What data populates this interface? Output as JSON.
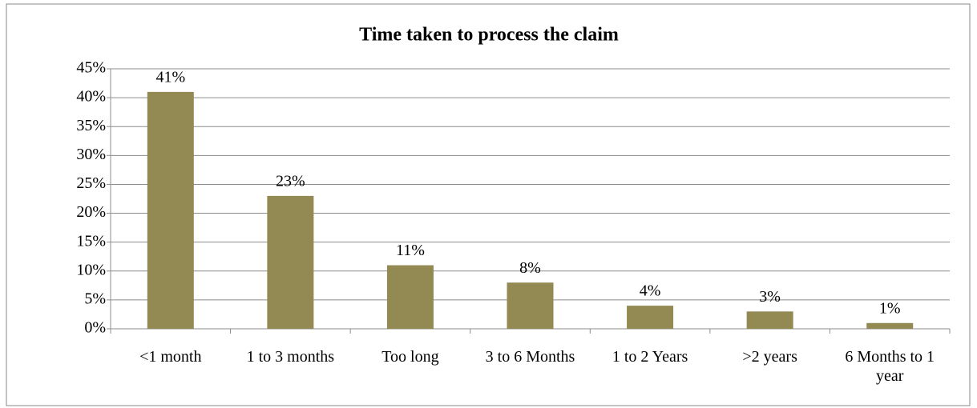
{
  "chart_data": {
    "type": "bar",
    "title": "Time taken to process the claim",
    "categories": [
      "<1 month",
      "1 to 3 months",
      "Too long",
      "3 to 6 Months",
      "1 to 2 Years",
      ">2 years",
      "6 Months to 1 year"
    ],
    "values": [
      41,
      23,
      11,
      8,
      4,
      3,
      1
    ],
    "value_labels": [
      "41%",
      "23%",
      "11%",
      "8%",
      "4%",
      "3%",
      "1%"
    ],
    "color": "#938953",
    "ylim": [
      0,
      45
    ],
    "yticks": [
      {
        "value": 0,
        "label": "0%"
      },
      {
        "value": 5,
        "label": "5%"
      },
      {
        "value": 10,
        "label": "10%"
      },
      {
        "value": 15,
        "label": "15%"
      },
      {
        "value": 20,
        "label": "20%"
      },
      {
        "value": 25,
        "label": "25%"
      },
      {
        "value": 30,
        "label": "30%"
      },
      {
        "value": 35,
        "label": "35%"
      },
      {
        "value": 40,
        "label": "40%"
      },
      {
        "value": 45,
        "label": "45%"
      }
    ],
    "grid": true
  }
}
